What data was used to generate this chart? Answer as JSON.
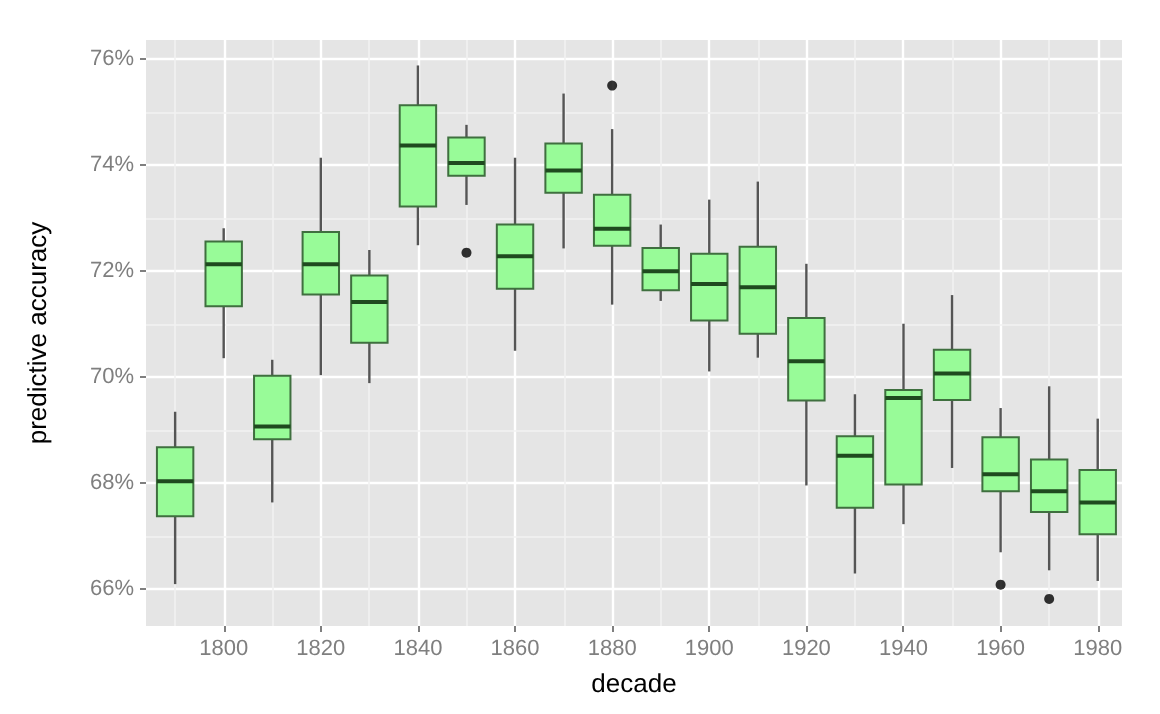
{
  "chart_data": {
    "type": "box",
    "xlabel": "decade",
    "ylabel": "predictive accuracy",
    "x": [
      1790,
      1800,
      1810,
      1820,
      1830,
      1840,
      1850,
      1860,
      1870,
      1880,
      1890,
      1900,
      1910,
      1920,
      1930,
      1940,
      1950,
      1960,
      1970,
      1980
    ],
    "color": "#98fb98",
    "boxes": [
      {
        "low": 66.09,
        "q1": 67.37,
        "median": 68.03,
        "q3": 68.67,
        "high": 69.34
      },
      {
        "low": 70.35,
        "q1": 71.33,
        "median": 72.12,
        "q3": 72.55,
        "high": 72.8
      },
      {
        "low": 67.63,
        "q1": 68.82,
        "median": 69.06,
        "q3": 70.02,
        "high": 70.32
      },
      {
        "low": 70.03,
        "q1": 71.55,
        "median": 72.12,
        "q3": 72.73,
        "high": 74.13
      },
      {
        "low": 69.88,
        "q1": 70.64,
        "median": 71.41,
        "q3": 71.91,
        "high": 72.39
      },
      {
        "low": 72.48,
        "q1": 73.21,
        "median": 74.36,
        "q3": 75.12,
        "high": 75.87
      },
      {
        "low": 73.24,
        "q1": 73.79,
        "median": 74.03,
        "q3": 74.51,
        "high": 74.75,
        "outliers": [
          72.34
        ]
      },
      {
        "low": 70.49,
        "q1": 71.66,
        "median": 72.27,
        "q3": 72.87,
        "high": 74.13
      },
      {
        "low": 72.42,
        "q1": 73.47,
        "median": 73.89,
        "q3": 74.4,
        "high": 75.34
      },
      {
        "low": 71.36,
        "q1": 72.47,
        "median": 72.79,
        "q3": 73.43,
        "high": 74.67,
        "outliers": [
          75.49
        ]
      },
      {
        "low": 71.43,
        "q1": 71.63,
        "median": 71.99,
        "q3": 72.43,
        "high": 72.87
      },
      {
        "low": 70.1,
        "q1": 71.06,
        "median": 71.75,
        "q3": 72.32,
        "high": 73.34
      },
      {
        "low": 70.36,
        "q1": 70.81,
        "median": 71.69,
        "q3": 72.45,
        "high": 73.68
      },
      {
        "low": 67.95,
        "q1": 69.55,
        "median": 70.29,
        "q3": 71.11,
        "high": 72.13
      },
      {
        "low": 66.29,
        "q1": 67.53,
        "median": 68.51,
        "q3": 68.88,
        "high": 69.67
      },
      {
        "low": 67.22,
        "q1": 67.97,
        "median": 69.6,
        "q3": 69.75,
        "high": 71.0
      },
      {
        "low": 68.28,
        "q1": 69.56,
        "median": 70.06,
        "q3": 70.51,
        "high": 71.54
      },
      {
        "low": 66.69,
        "q1": 67.84,
        "median": 68.16,
        "q3": 68.86,
        "high": 69.41,
        "outliers": [
          66.08
        ]
      },
      {
        "low": 66.35,
        "q1": 67.45,
        "median": 67.84,
        "q3": 68.44,
        "high": 69.82,
        "outliers": [
          65.81
        ]
      },
      {
        "low": 66.15,
        "q1": 67.03,
        "median": 67.63,
        "q3": 68.24,
        "high": 69.21
      }
    ],
    "xlim": [
      1784,
      1985
    ],
    "xticks": [
      1800,
      1820,
      1840,
      1860,
      1880,
      1900,
      1920,
      1940,
      1960,
      1980
    ],
    "ylim": [
      65.3,
      76.35
    ],
    "yticks": [
      {
        "value": 66,
        "label": "66%"
      },
      {
        "value": 68,
        "label": "68%"
      },
      {
        "value": 70,
        "label": "70%"
      },
      {
        "value": 72,
        "label": "72%"
      },
      {
        "value": 74,
        "label": "74%"
      },
      {
        "value": 76,
        "label": "76%"
      }
    ],
    "grid": true,
    "legend": false
  }
}
